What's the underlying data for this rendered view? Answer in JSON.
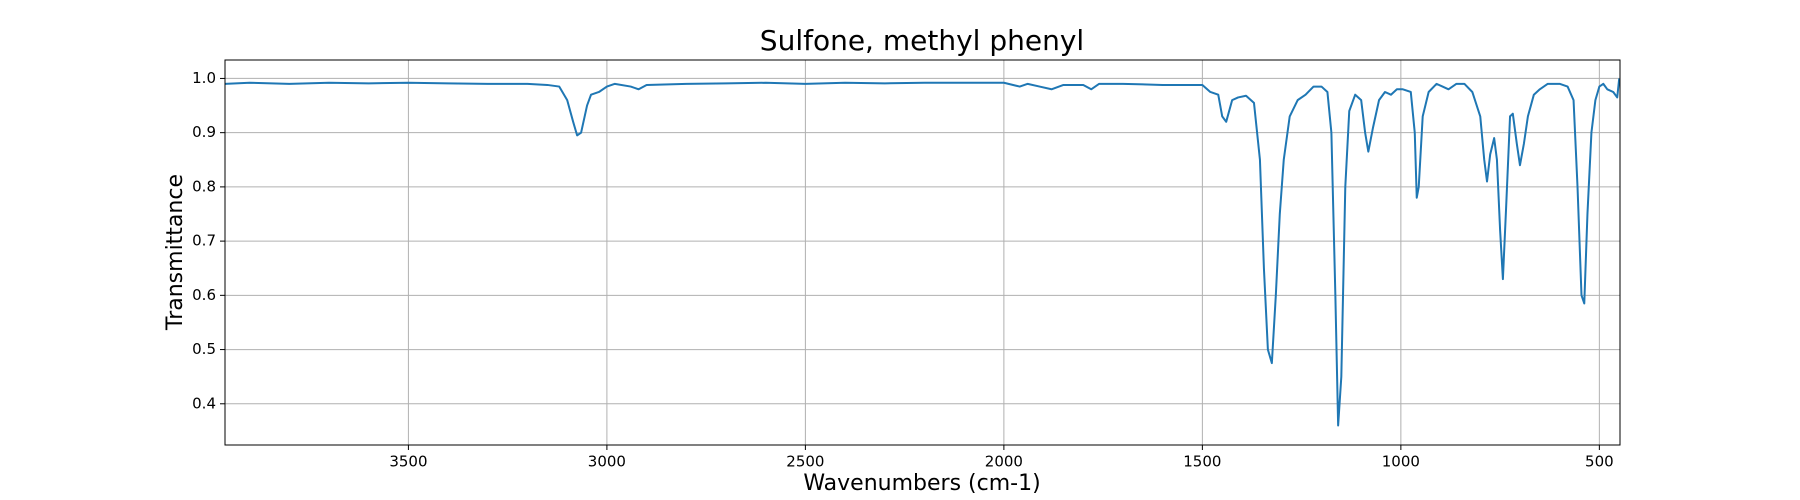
{
  "chart_data": {
    "type": "line",
    "title": "Sulfone, methyl phenyl",
    "x_label": "Wavenumbers (cm-1)",
    "y_label": "Transmittance",
    "x": [
      3962,
      3900,
      3800,
      3700,
      3600,
      3500,
      3400,
      3300,
      3200,
      3150,
      3120,
      3100,
      3085,
      3075,
      3065,
      3050,
      3040,
      3020,
      3000,
      2980,
      2940,
      2920,
      2900,
      2800,
      2700,
      2600,
      2500,
      2400,
      2300,
      2200,
      2100,
      2000,
      1960,
      1940,
      1910,
      1880,
      1850,
      1800,
      1780,
      1760,
      1700,
      1600,
      1500,
      1480,
      1460,
      1450,
      1440,
      1425,
      1410,
      1390,
      1370,
      1355,
      1345,
      1335,
      1325,
      1315,
      1305,
      1295,
      1280,
      1260,
      1240,
      1220,
      1200,
      1185,
      1175,
      1165,
      1158,
      1150,
      1140,
      1130,
      1115,
      1100,
      1090,
      1082,
      1070,
      1055,
      1040,
      1025,
      1010,
      995,
      975,
      965,
      960,
      955,
      945,
      930,
      910,
      895,
      880,
      860,
      840,
      820,
      800,
      790,
      783,
      775,
      765,
      758,
      750,
      743,
      735,
      725,
      718,
      708,
      700,
      690,
      680,
      665,
      650,
      630,
      600,
      580,
      565,
      555,
      545,
      538,
      530,
      520,
      510,
      500,
      490,
      480,
      465,
      455,
      450
    ],
    "values": [
      0.99,
      0.992,
      0.99,
      0.992,
      0.991,
      0.992,
      0.991,
      0.99,
      0.99,
      0.988,
      0.985,
      0.96,
      0.92,
      0.895,
      0.9,
      0.95,
      0.97,
      0.975,
      0.985,
      0.99,
      0.985,
      0.98,
      0.988,
      0.99,
      0.991,
      0.992,
      0.99,
      0.992,
      0.991,
      0.992,
      0.992,
      0.992,
      0.985,
      0.99,
      0.985,
      0.98,
      0.988,
      0.988,
      0.98,
      0.99,
      0.99,
      0.988,
      0.988,
      0.975,
      0.97,
      0.93,
      0.92,
      0.96,
      0.965,
      0.968,
      0.955,
      0.85,
      0.65,
      0.5,
      0.475,
      0.6,
      0.75,
      0.85,
      0.93,
      0.96,
      0.97,
      0.985,
      0.985,
      0.975,
      0.9,
      0.6,
      0.36,
      0.45,
      0.8,
      0.94,
      0.97,
      0.96,
      0.9,
      0.865,
      0.91,
      0.96,
      0.975,
      0.97,
      0.98,
      0.98,
      0.975,
      0.9,
      0.78,
      0.8,
      0.93,
      0.975,
      0.99,
      0.985,
      0.98,
      0.99,
      0.99,
      0.975,
      0.93,
      0.85,
      0.81,
      0.86,
      0.89,
      0.85,
      0.72,
      0.63,
      0.76,
      0.93,
      0.935,
      0.88,
      0.84,
      0.88,
      0.93,
      0.97,
      0.98,
      0.99,
      0.99,
      0.985,
      0.96,
      0.8,
      0.6,
      0.585,
      0.75,
      0.9,
      0.96,
      0.985,
      0.99,
      0.98,
      0.975,
      0.965,
      1.0
    ],
    "color": "#1f77b4",
    "xlim": [
      3962,
      448
    ],
    "xticks": [
      3500,
      3000,
      2500,
      2000,
      1500,
      1000,
      500
    ],
    "ylim": [
      0.324,
      1.034
    ],
    "yticks": [
      0.4,
      0.5,
      0.6,
      0.7,
      0.8,
      0.9,
      {
        "value": 1,
        "label": "1.0"
      }
    ],
    "grid": true
  }
}
